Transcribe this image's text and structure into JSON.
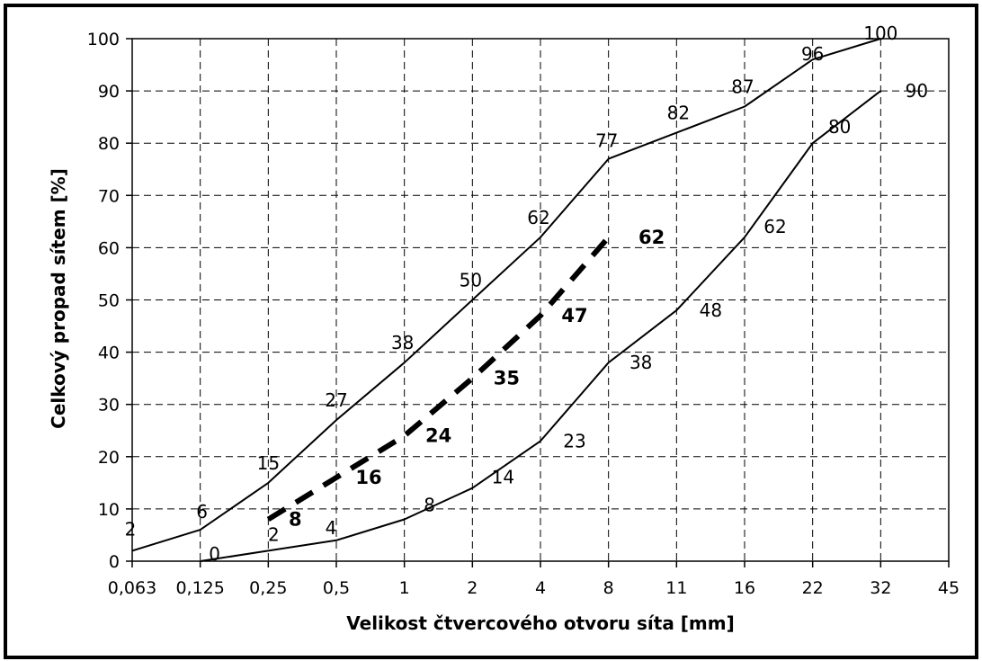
{
  "chart_data": {
    "type": "line",
    "xlabel": "Velikost čtvercového otvoru síta [mm]",
    "ylabel": "Celkový propad sítem [%]",
    "x_scale": "categorical",
    "categories": [
      "0,063",
      "0,125",
      "0,25",
      "0,5",
      "1",
      "2",
      "4",
      "8",
      "11",
      "16",
      "22",
      "32",
      "45"
    ],
    "yticks": [
      0,
      10,
      20,
      30,
      40,
      50,
      60,
      70,
      80,
      90,
      100
    ],
    "ylim": [
      0,
      100
    ],
    "grid": true,
    "series": [
      {
        "style": "solid",
        "points": [
          {
            "x": "0,063",
            "y": 2,
            "label": "2"
          },
          {
            "x": "0,125",
            "y": 6,
            "label": "6"
          },
          {
            "x": "0,25",
            "y": 15,
            "label": "15"
          },
          {
            "x": "0,5",
            "y": 27,
            "label": "27"
          },
          {
            "x": "1",
            "y": 38,
            "label": "38"
          },
          {
            "x": "2",
            "y": 50,
            "label": "50"
          },
          {
            "x": "4",
            "y": 62,
            "label": "62"
          },
          {
            "x": "8",
            "y": 77,
            "label": "77"
          },
          {
            "x": "11",
            "y": 82,
            "label": "82"
          },
          {
            "x": "16",
            "y": 87,
            "label": "87"
          },
          {
            "x": "22",
            "y": 96,
            "label": "96"
          },
          {
            "x": "32",
            "y": 100,
            "label": "100"
          }
        ]
      },
      {
        "style": "dashed-bold",
        "points": [
          {
            "x": "0,25",
            "y": 8,
            "label": "8"
          },
          {
            "x": "0,5",
            "y": 16,
            "label": "16"
          },
          {
            "x": "1",
            "y": 24,
            "label": "24"
          },
          {
            "x": "2",
            "y": 35,
            "label": "35"
          },
          {
            "x": "4",
            "y": 47,
            "label": "47"
          },
          {
            "x": "8",
            "y": 62,
            "label": "62"
          }
        ]
      },
      {
        "style": "solid",
        "points": [
          {
            "x": "0,125",
            "y": 0,
            "label": "0"
          },
          {
            "x": "0,25",
            "y": 2,
            "label": "2"
          },
          {
            "x": "0,5",
            "y": 4,
            "label": "4"
          },
          {
            "x": "1",
            "y": 8,
            "label": "8"
          },
          {
            "x": "2",
            "y": 14,
            "label": "14"
          },
          {
            "x": "4",
            "y": 23,
            "label": "23"
          },
          {
            "x": "8",
            "y": 38,
            "label": "38"
          },
          {
            "x": "11",
            "y": 48,
            "label": "48"
          },
          {
            "x": "16",
            "y": 62,
            "label": "62"
          },
          {
            "x": "22",
            "y": 80,
            "label": "80"
          },
          {
            "x": "32",
            "y": 90,
            "label": "90"
          }
        ]
      }
    ],
    "colors": {
      "line": "#000000",
      "grid": "#000000",
      "background": "#ffffff"
    }
  }
}
